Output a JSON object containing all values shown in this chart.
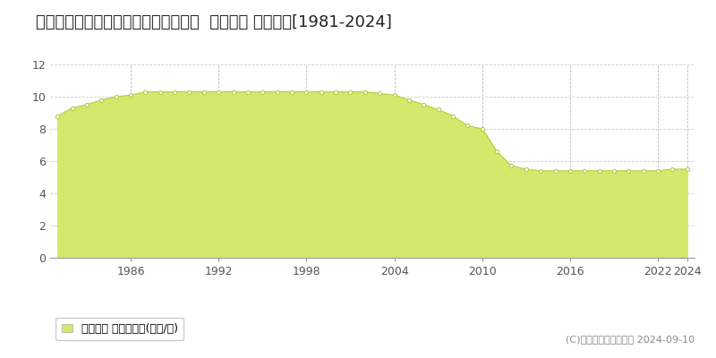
{
  "title": "北海道釧路市緑ケ岡５丁目４７番７８  地価公示 地価推移[1981-2024]",
  "years": [
    1981,
    1982,
    1983,
    1984,
    1985,
    1986,
    1987,
    1988,
    1989,
    1990,
    1991,
    1992,
    1993,
    1994,
    1995,
    1996,
    1997,
    1998,
    1999,
    2000,
    2001,
    2002,
    2003,
    2004,
    2005,
    2006,
    2007,
    2008,
    2009,
    2010,
    2011,
    2012,
    2013,
    2014,
    2015,
    2016,
    2017,
    2018,
    2019,
    2020,
    2021,
    2022,
    2023,
    2024
  ],
  "values": [
    8.8,
    9.3,
    9.5,
    9.8,
    10.0,
    10.1,
    10.3,
    10.3,
    10.3,
    10.3,
    10.3,
    10.3,
    10.3,
    10.3,
    10.3,
    10.3,
    10.3,
    10.3,
    10.3,
    10.3,
    10.3,
    10.3,
    10.2,
    10.1,
    9.8,
    9.5,
    9.2,
    8.8,
    8.2,
    8.0,
    6.6,
    5.7,
    5.5,
    5.4,
    5.4,
    5.4,
    5.4,
    5.4,
    5.4,
    5.4,
    5.4,
    5.4,
    5.5,
    5.5
  ],
  "fill_color": "#d4e96b",
  "line_color": "#b8cc44",
  "marker_color": "#ffffff",
  "marker_edge_color": "#b8cc44",
  "bg_color": "#ffffff",
  "plot_bg_color": "#ffffff",
  "grid_color_h": "#cccccc",
  "grid_color_v": "#bbbbbb",
  "ylim": [
    0,
    12
  ],
  "yticks": [
    0,
    2,
    4,
    6,
    8,
    10,
    12
  ],
  "xlabel_ticks": [
    1986,
    1992,
    1998,
    2004,
    2010,
    2016,
    2022,
    2024
  ],
  "legend_label": "地価公示 平均坪単価(万円/坪)",
  "copyright_text": "(C)土地価格ドットコム 2024-09-10",
  "title_fontsize": 13,
  "tick_fontsize": 9,
  "legend_fontsize": 9,
  "copyright_fontsize": 8
}
